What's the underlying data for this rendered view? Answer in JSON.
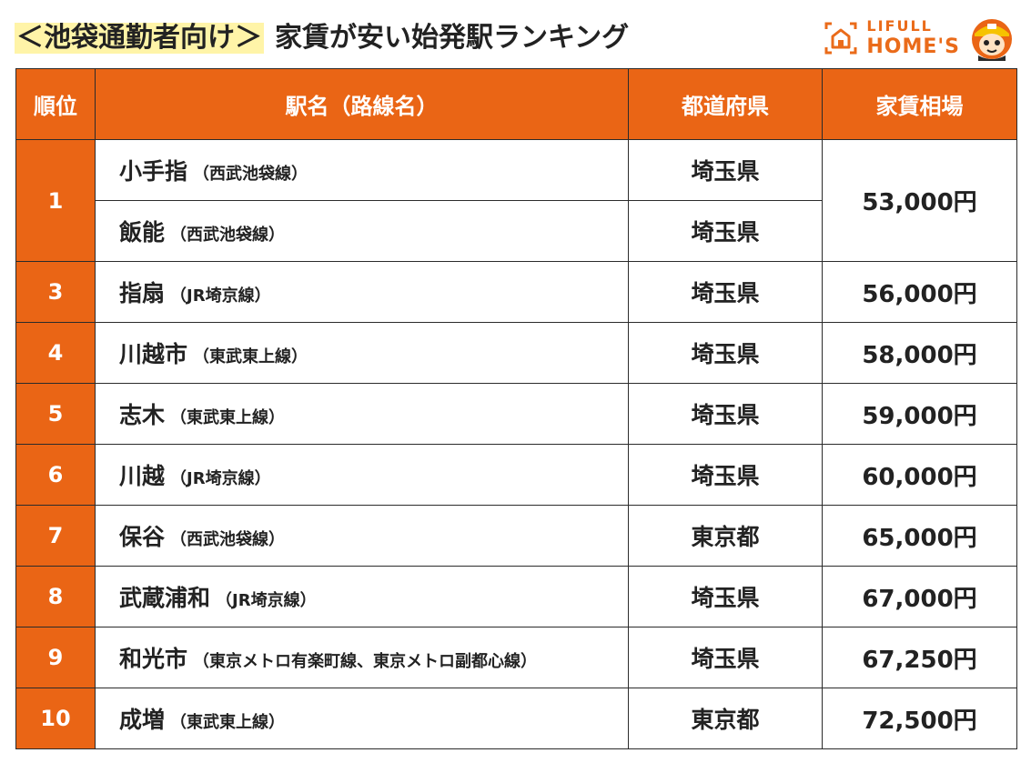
{
  "header": {
    "title_highlight": "＜池袋通勤者向け＞",
    "title_main": "家賃が安い始発駅ランキング",
    "logo_line1": "LIFULL",
    "logo_line2": "HOME'S"
  },
  "colors": {
    "accent": "#ea6515",
    "highlight": "#fff4a8"
  },
  "table": {
    "headers": {
      "rank": "順位",
      "name": "駅名（路線名）",
      "pref": "都道府県",
      "rent": "家賃相場"
    },
    "rows": [
      {
        "rank": "1",
        "station": "小手指",
        "line": "（西武池袋線）",
        "pref": "埼玉県",
        "rent": "53,000円"
      },
      {
        "rank": "",
        "station": "飯能",
        "line": "（西武池袋線）",
        "pref": "埼玉県",
        "rent": ""
      },
      {
        "rank": "3",
        "station": "指扇",
        "line": "（JR埼京線）",
        "pref": "埼玉県",
        "rent": "56,000円"
      },
      {
        "rank": "4",
        "station": "川越市",
        "line": "（東武東上線）",
        "pref": "埼玉県",
        "rent": "58,000円"
      },
      {
        "rank": "5",
        "station": "志木",
        "line": "（東武東上線）",
        "pref": "埼玉県",
        "rent": "59,000円"
      },
      {
        "rank": "6",
        "station": "川越",
        "line": "（JR埼京線）",
        "pref": "埼玉県",
        "rent": "60,000円"
      },
      {
        "rank": "7",
        "station": "保谷",
        "line": "（西武池袋線）",
        "pref": "東京都",
        "rent": "65,000円"
      },
      {
        "rank": "8",
        "station": "武蔵浦和",
        "line": "（JR埼京線）",
        "pref": "埼玉県",
        "rent": "67,000円"
      },
      {
        "rank": "9",
        "station": "和光市",
        "line": "（東京メトロ有楽町線、東京メトロ副都心線）",
        "pref": "埼玉県",
        "rent": "67,250円"
      },
      {
        "rank": "10",
        "station": "成増",
        "line": "（東武東上線）",
        "pref": "東京都",
        "rent": "72,500円"
      }
    ]
  }
}
